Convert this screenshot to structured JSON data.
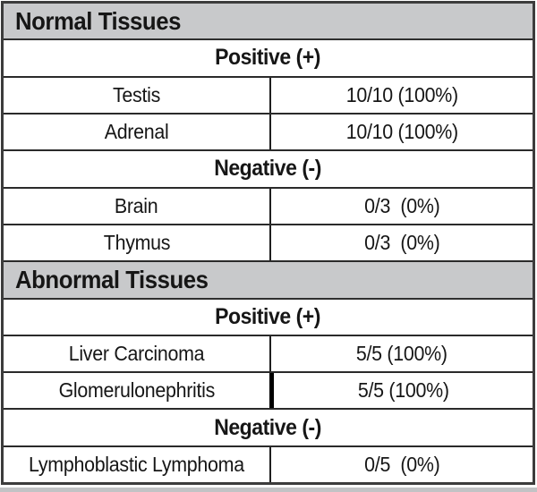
{
  "colors": {
    "header_bg": "#c8c9cb",
    "border": "#2a2a2a",
    "text": "#161616",
    "bottom_strip": "#c2c3c5"
  },
  "table": {
    "sections": [
      {
        "title": "Normal Tissues",
        "groups": [
          {
            "label": "Positive (+)",
            "rows": [
              {
                "tissue": "Testis",
                "result": "10/10 (100%)"
              },
              {
                "tissue": "Adrenal",
                "result": "10/10 (100%)"
              }
            ]
          },
          {
            "label": "Negative (-)",
            "rows": [
              {
                "tissue": "Brain",
                "result": "0/3  (0%)"
              },
              {
                "tissue": "Thymus",
                "result": "0/3  (0%)"
              }
            ]
          }
        ]
      },
      {
        "title": "Abnormal Tissues",
        "groups": [
          {
            "label": "Positive (+)",
            "rows": [
              {
                "tissue": "Liver Carcinoma",
                "result": "5/5 (100%)"
              },
              {
                "tissue": "Glomerulonephritis",
                "result": "5/5 (100%)"
              }
            ]
          },
          {
            "label": "Negative (-)",
            "rows": [
              {
                "tissue": "Lymphoblastic Lymphoma",
                "result": "0/5  (0%)"
              }
            ]
          }
        ]
      }
    ]
  }
}
